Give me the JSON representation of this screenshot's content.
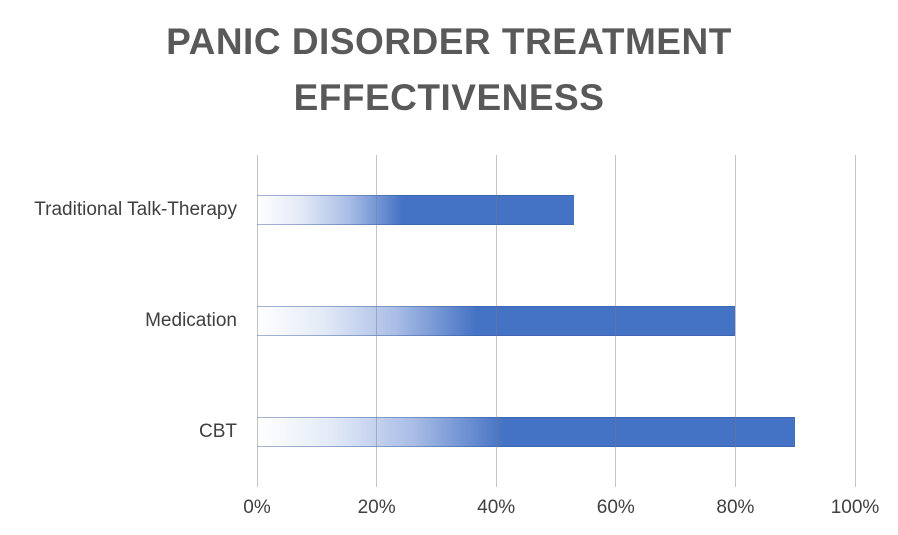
{
  "title": {
    "text": "PANIC DISORDER TREATMENT EFFECTIVENESS",
    "lines": [
      "PANIC DISORDER TREATMENT",
      "EFFECTIVENESS"
    ]
  },
  "chart_data": {
    "type": "bar",
    "orientation": "horizontal",
    "title": "PANIC DISORDER TREATMENT EFFECTIVENESS",
    "categories": [
      "Traditional Talk-Therapy",
      "Medication",
      "CBT"
    ],
    "values": [
      53,
      80,
      90
    ],
    "unit": "%",
    "xlabel": "",
    "ylabel": "",
    "x_ticks": [
      "0%",
      "20%",
      "40%",
      "60%",
      "80%",
      "100%"
    ],
    "xlim": [
      0,
      100
    ],
    "grid": "vertical-only",
    "legend": "none",
    "colors": {
      "bar_gradient_start": "#FFFFFF",
      "bar_gradient_mid": "#A9BDE6",
      "bar_gradient_end": "#4472C4",
      "gridline": "#CDD0D2",
      "title_text": "#595959",
      "axis_text": "#404040",
      "background": "#FFFFFF"
    }
  }
}
